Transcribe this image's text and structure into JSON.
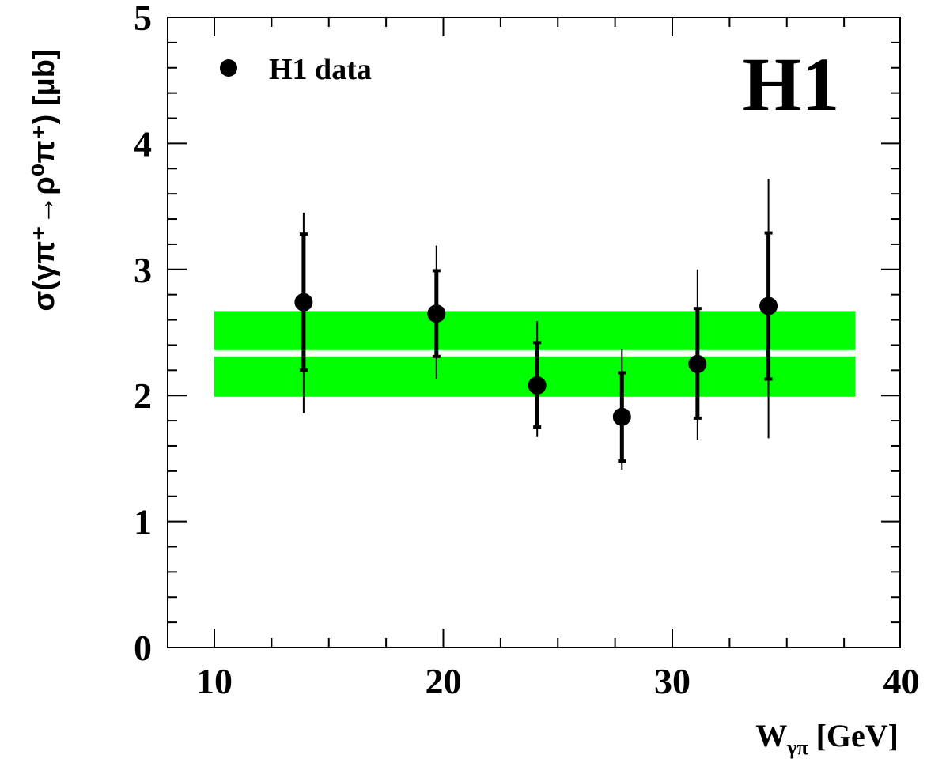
{
  "chart_data": {
    "type": "scatter",
    "xlabel_main": "W",
    "xlabel_sub": "γπ",
    "xlabel_unit": " [GeV]",
    "ylabel": "σ(γπ⁺→ρ⁰π⁺) [μb]",
    "watermark": "H1",
    "xlim": [
      8,
      40
    ],
    "ylim": [
      0,
      5
    ],
    "x_major_ticks": [
      10,
      20,
      30,
      40
    ],
    "y_major_ticks": [
      0,
      1,
      2,
      3,
      4,
      5
    ],
    "legend": {
      "label": "H1 data",
      "placement": "top-left"
    },
    "series": [
      {
        "name": "H1 data",
        "points": [
          {
            "x": 13.9,
            "y": 2.74,
            "stat_lo": 2.2,
            "stat_hi": 3.28,
            "tot_lo": 1.86,
            "tot_hi": 3.45
          },
          {
            "x": 19.7,
            "y": 2.65,
            "stat_lo": 2.31,
            "stat_hi": 2.99,
            "tot_lo": 2.13,
            "tot_hi": 3.19
          },
          {
            "x": 24.1,
            "y": 2.08,
            "stat_lo": 1.75,
            "stat_hi": 2.42,
            "tot_lo": 1.67,
            "tot_hi": 2.59
          },
          {
            "x": 27.8,
            "y": 1.83,
            "stat_lo": 1.48,
            "stat_hi": 2.18,
            "tot_lo": 1.41,
            "tot_hi": 2.37
          },
          {
            "x": 31.1,
            "y": 2.25,
            "stat_lo": 1.82,
            "stat_hi": 2.69,
            "tot_lo": 1.65,
            "tot_hi": 3.0
          },
          {
            "x": 34.2,
            "y": 2.71,
            "stat_lo": 2.13,
            "stat_hi": 3.29,
            "tot_lo": 1.66,
            "tot_hi": 3.72
          }
        ]
      }
    ],
    "band": {
      "x_range": [
        10,
        38
      ],
      "y_lo": 1.99,
      "y_hi": 2.67,
      "central_lo": 2.31,
      "central_hi": 2.36,
      "color": "#00ff00",
      "central_color": "#ffffff"
    },
    "colors": {
      "marker": "#000000",
      "axes": "#000000"
    }
  }
}
